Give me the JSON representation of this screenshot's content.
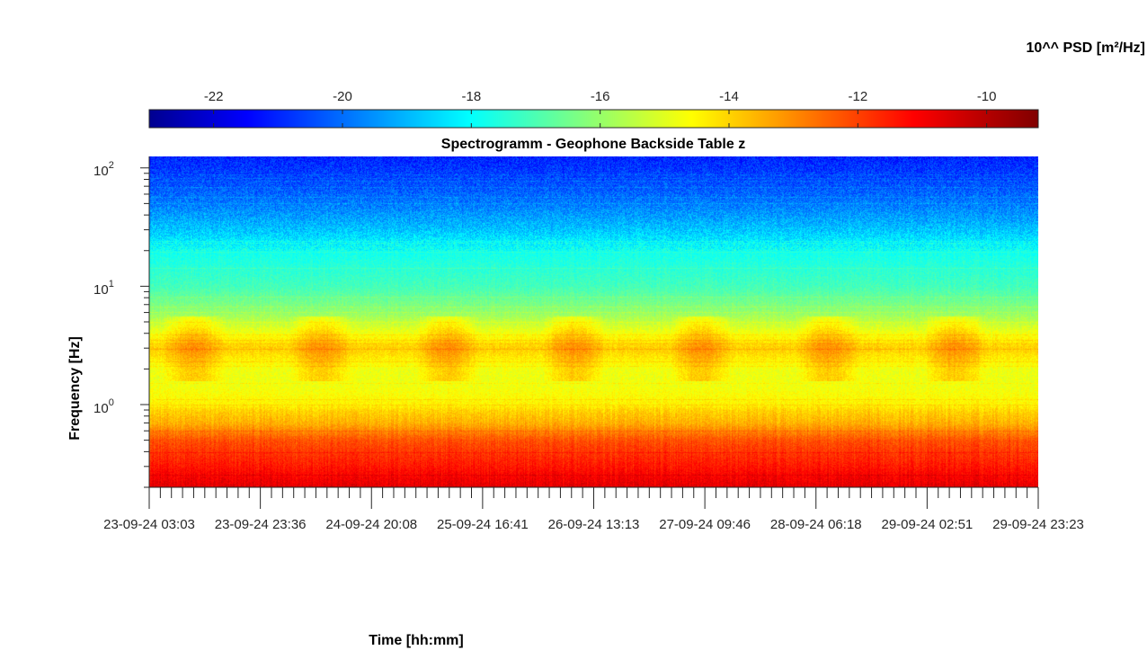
{
  "chart_data": {
    "type": "heatmap",
    "title": "Spectrogramm - Geophone Backside Table z",
    "xlabel": "Time [hh:mm]",
    "ylabel": "Frequency [Hz]",
    "colorbar": {
      "label": "10^^ PSD [m²/Hz]",
      "colormap": "jet",
      "range": [
        -23,
        -9.2
      ],
      "ticks": [
        -22,
        -20,
        -18,
        -16,
        -14,
        -12,
        -10
      ],
      "tick_labels": [
        "-22",
        "-20",
        "-18",
        "-16",
        "-14",
        "-12",
        "-10"
      ]
    },
    "y_scale": "log",
    "ylim": [
      0.2,
      125
    ],
    "y_ticks": [
      1,
      10,
      100
    ],
    "y_tick_labels": [
      {
        "base": "10",
        "exp": "0"
      },
      {
        "base": "10",
        "exp": "1"
      },
      {
        "base": "10",
        "exp": "2"
      }
    ],
    "x_tick_labels": [
      "23-09-24  03:03",
      "23-09-24  23:36",
      "24-09-24  20:08",
      "25-09-24  16:41",
      "26-09-24  13:13",
      "27-09-24  09:46",
      "28-09-24  06:18",
      "29-09-24  02:51",
      "29-09-24  23:23"
    ],
    "psd_profile": {
      "frequency_hz": [
        0.2,
        0.3,
        0.5,
        0.7,
        0.9,
        1.0,
        1.5,
        2.0,
        3.0,
        4.0,
        6.0,
        10,
        20,
        30,
        50,
        80,
        125
      ],
      "log10_psd": [
        -10.5,
        -11.2,
        -12.0,
        -13.3,
        -13.8,
        -14.2,
        -14.6,
        -14.6,
        -13.7,
        -14.5,
        -15.8,
        -16.9,
        -17.6,
        -18.6,
        -19.6,
        -20.3,
        -20.8
      ]
    },
    "colors": {
      "frame": "#262626",
      "background": "#ffffff"
    }
  }
}
